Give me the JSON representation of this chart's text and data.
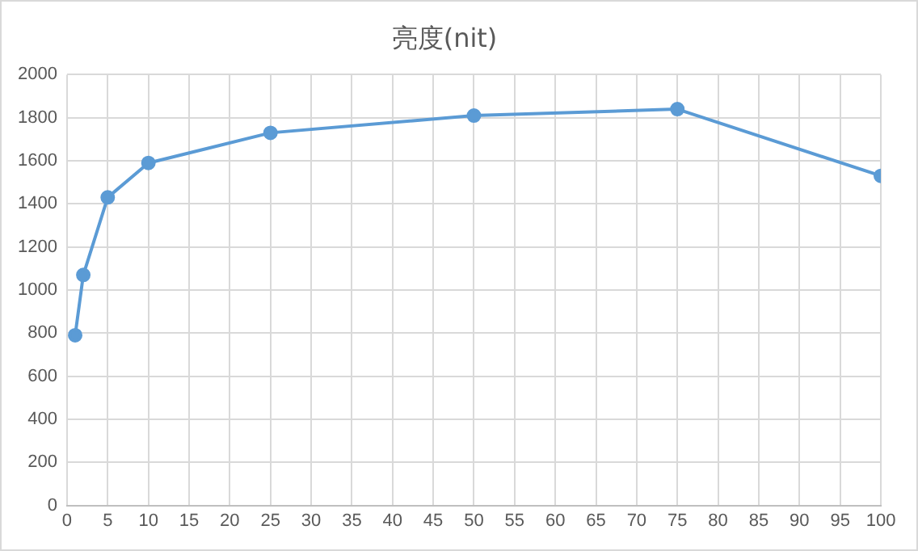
{
  "chart_data": {
    "type": "line",
    "title": "亮度(nit)",
    "x": [
      1,
      2,
      5,
      10,
      25,
      50,
      75,
      100
    ],
    "series": [
      {
        "color": "#5b9bd5",
        "values": [
          790,
          1070,
          1430,
          1590,
          1730,
          1810,
          1840,
          1530
        ]
      }
    ],
    "xlim": [
      0,
      100
    ],
    "xticks": [
      0,
      5,
      10,
      15,
      20,
      25,
      30,
      35,
      40,
      45,
      50,
      55,
      60,
      65,
      70,
      75,
      80,
      85,
      90,
      95,
      100
    ],
    "ylim": [
      0,
      2000
    ],
    "yticks": [
      0,
      200,
      400,
      600,
      800,
      1000,
      1200,
      1400,
      1600,
      1800,
      2000
    ],
    "grid": true,
    "legend": false,
    "marker": "circle",
    "line_style": "solid"
  }
}
